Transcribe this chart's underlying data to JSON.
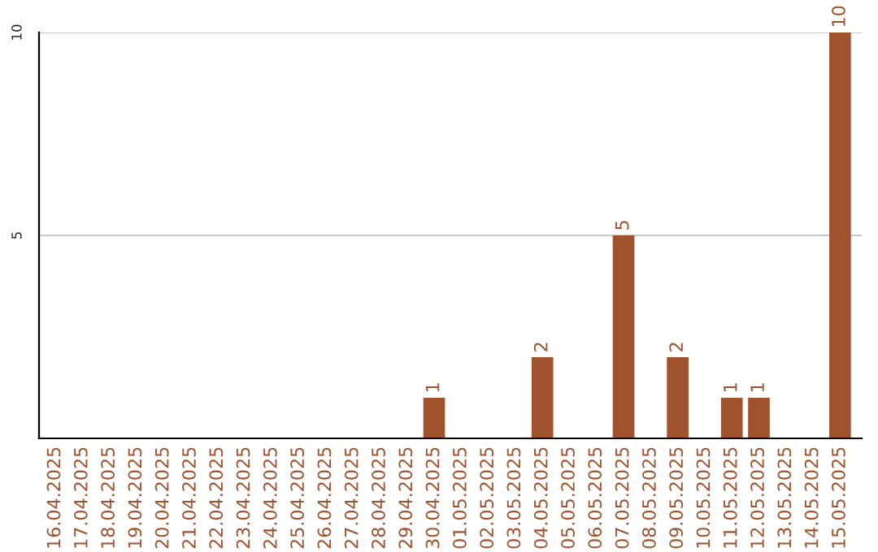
{
  "chart_data": {
    "type": "bar",
    "categories": [
      "16.04.2025",
      "17.04.2025",
      "18.04.2025",
      "19.04.2025",
      "20.04.2025",
      "21.04.2025",
      "22.04.2025",
      "23.04.2025",
      "24.04.2025",
      "25.04.2025",
      "26.04.2025",
      "27.04.2025",
      "28.04.2025",
      "29.04.2025",
      "30.04.2025",
      "01.05.2025",
      "02.05.2025",
      "03.05.2025",
      "04.05.2025",
      "05.05.2025",
      "06.05.2025",
      "07.05.2025",
      "08.05.2025",
      "09.05.2025",
      "10.05.2025",
      "11.05.2025",
      "12.05.2025",
      "13.05.2025",
      "14.05.2025",
      "15.05.2025"
    ],
    "values": [
      0,
      0,
      0,
      0,
      0,
      0,
      0,
      0,
      0,
      0,
      0,
      0,
      0,
      0,
      1,
      0,
      0,
      0,
      2,
      0,
      0,
      5,
      0,
      2,
      0,
      1,
      1,
      0,
      0,
      10
    ],
    "value_labels": [
      null,
      null,
      null,
      null,
      null,
      null,
      null,
      null,
      null,
      null,
      null,
      null,
      null,
      null,
      "1",
      null,
      null,
      null,
      "2",
      null,
      null,
      "5",
      null,
      "2",
      null,
      "1",
      "1",
      null,
      null,
      "10"
    ],
    "color": "#a0522d",
    "ylim": [
      0,
      10
    ],
    "yticks": [
      5,
      10
    ],
    "grid": "y"
  }
}
